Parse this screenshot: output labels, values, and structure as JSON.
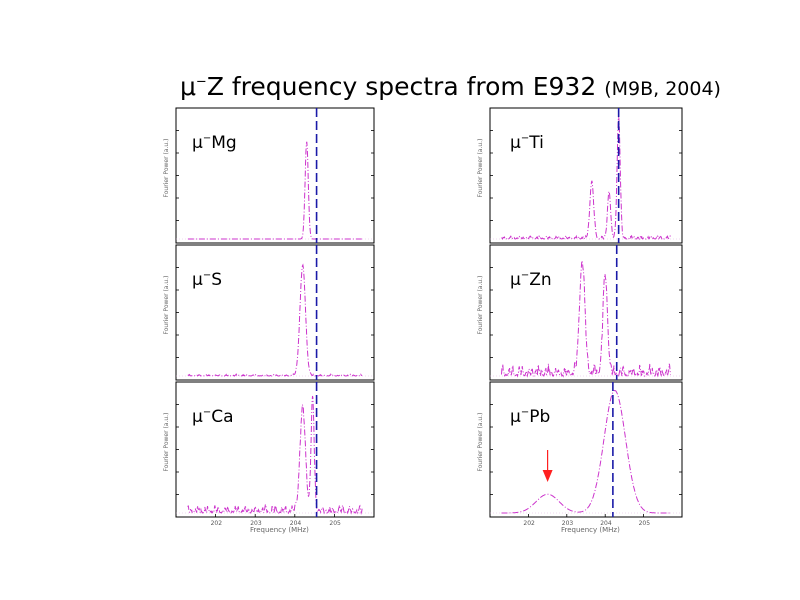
{
  "title": {
    "main_prefix": "μ",
    "main_sup": "−",
    "main_rest": "Z frequency spectra from E932",
    "sub": "(M9B, 2004)"
  },
  "colors": {
    "spectrum": "#cc33cc",
    "reference_line": "#1a1aa8",
    "arrow": "#ff2020"
  },
  "axis_text": {
    "ylabel": "Fourier Power (a.u.)",
    "xlabel": "Frequency (MHz)"
  },
  "chart_data": [
    {
      "type": "line",
      "column": "left",
      "row": 0,
      "label_prefix": "μ",
      "label_sup": "−",
      "label_rest": "Mg",
      "xlim": [
        201.0,
        206.0
      ],
      "reference_frequency": 204.55,
      "peaks": [
        {
          "f": 204.3,
          "h": 0.78,
          "w": 0.04
        }
      ],
      "noise": 0.0,
      "show_x_ticks": false
    },
    {
      "type": "line",
      "column": "left",
      "row": 1,
      "label_prefix": "μ",
      "label_sup": "−",
      "label_rest": "S",
      "xlim": [
        201.0,
        206.0
      ],
      "reference_frequency": 204.55,
      "peaks": [
        {
          "f": 204.2,
          "h": 0.88,
          "w": 0.07
        }
      ],
      "noise": 0.01,
      "show_x_ticks": false
    },
    {
      "type": "line",
      "column": "left",
      "row": 2,
      "label_prefix": "μ",
      "label_sup": "−",
      "label_rest": "Ca",
      "xlim": [
        201.0,
        206.0
      ],
      "reference_frequency": 204.55,
      "peaks": [
        {
          "f": 204.2,
          "h": 0.82,
          "w": 0.07
        },
        {
          "f": 204.45,
          "h": 0.9,
          "w": 0.04
        }
      ],
      "noise": 0.05,
      "x_ticks": [
        "202",
        "203",
        "204",
        "205"
      ],
      "show_x_ticks": true
    },
    {
      "type": "line",
      "column": "right",
      "row": 0,
      "label_prefix": "μ",
      "label_sup": "−",
      "label_rest": "Ti",
      "xlim": [
        201.0,
        206.0
      ],
      "reference_frequency": 204.35,
      "peaks": [
        {
          "f": 203.65,
          "h": 0.45,
          "w": 0.05
        },
        {
          "f": 204.1,
          "h": 0.38,
          "w": 0.04
        },
        {
          "f": 204.35,
          "h": 0.98,
          "w": 0.04
        }
      ],
      "noise": 0.02,
      "show_x_ticks": false
    },
    {
      "type": "line",
      "column": "right",
      "row": 1,
      "label_prefix": "μ",
      "label_sup": "−",
      "label_rest": "Zn",
      "xlim": [
        201.0,
        206.0
      ],
      "reference_frequency": 204.3,
      "peaks": [
        {
          "f": 203.4,
          "h": 0.9,
          "w": 0.07
        },
        {
          "f": 204.0,
          "h": 0.78,
          "w": 0.06
        }
      ],
      "noise": 0.07,
      "show_x_ticks": false
    },
    {
      "type": "line",
      "column": "right",
      "row": 2,
      "label_prefix": "μ",
      "label_sup": "−",
      "label_rest": "Pb",
      "xlim": [
        201.0,
        206.0
      ],
      "reference_frequency": 204.2,
      "peaks": [
        {
          "f": 202.5,
          "h": 0.15,
          "w": 0.3
        },
        {
          "f": 204.25,
          "h": 0.98,
          "w": 0.28
        }
      ],
      "noise": 0.0,
      "arrow_at": 202.5,
      "x_ticks": [
        "202",
        "203",
        "204",
        "205"
      ],
      "show_x_ticks": true
    }
  ]
}
